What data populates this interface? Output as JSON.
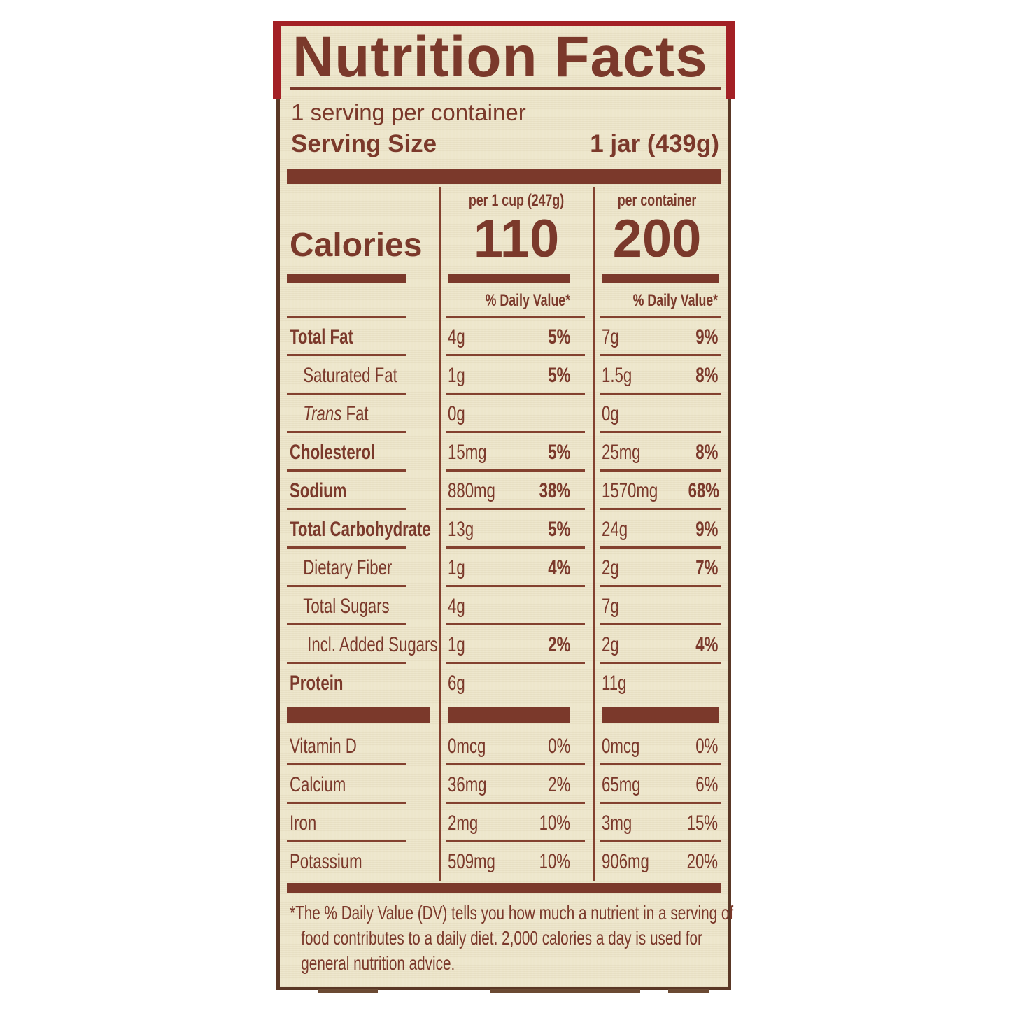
{
  "colors": {
    "text_brown": "#7B392B",
    "rule_brown": "#83412F",
    "panel_cream": "#EDE6CB",
    "trim_red": "#A32025",
    "border_brown": "#5A3826"
  },
  "header": {
    "title": "Nutrition Facts",
    "servings_per_container": "1 serving per container",
    "serving_size_label": "Serving Size",
    "serving_size_value": "1 jar (439g)"
  },
  "calories": {
    "label": "Calories",
    "columns": [
      {
        "header": "per 1 cup (247g)",
        "value": "110"
      },
      {
        "header": "per container",
        "value": "200"
      }
    ]
  },
  "daily_value_header": "% Daily Value*",
  "nutrients": [
    {
      "label": "Total Fat",
      "bold": true,
      "indent": 0,
      "per_cup": {
        "amount": "4g",
        "dv": "5%"
      },
      "per_container": {
        "amount": "7g",
        "dv": "9%"
      }
    },
    {
      "label": "Saturated Fat",
      "bold": false,
      "indent": 1,
      "per_cup": {
        "amount": "1g",
        "dv": "5%"
      },
      "per_container": {
        "amount": "1.5g",
        "dv": "8%"
      }
    },
    {
      "label": "Trans Fat",
      "bold": false,
      "indent": 1,
      "italic_first": true,
      "per_cup": {
        "amount": "0g",
        "dv": ""
      },
      "per_container": {
        "amount": "0g",
        "dv": ""
      }
    },
    {
      "label": "Cholesterol",
      "bold": true,
      "indent": 0,
      "per_cup": {
        "amount": "15mg",
        "dv": "5%"
      },
      "per_container": {
        "amount": "25mg",
        "dv": "8%"
      }
    },
    {
      "label": "Sodium",
      "bold": true,
      "indent": 0,
      "per_cup": {
        "amount": "880mg",
        "dv": "38%"
      },
      "per_container": {
        "amount": "1570mg",
        "dv": "68%"
      }
    },
    {
      "label": "Total Carbohydrate",
      "bold": true,
      "indent": 0,
      "per_cup": {
        "amount": "13g",
        "dv": "5%"
      },
      "per_container": {
        "amount": "24g",
        "dv": "9%"
      }
    },
    {
      "label": "Dietary Fiber",
      "bold": false,
      "indent": 1,
      "per_cup": {
        "amount": "1g",
        "dv": "4%"
      },
      "per_container": {
        "amount": "2g",
        "dv": "7%"
      }
    },
    {
      "label": "Total Sugars",
      "bold": false,
      "indent": 1,
      "per_cup": {
        "amount": "4g",
        "dv": ""
      },
      "per_container": {
        "amount": "7g",
        "dv": ""
      }
    },
    {
      "label": "Incl. Added Sugars",
      "bold": false,
      "indent": 2,
      "per_cup": {
        "amount": "1g",
        "dv": "2%"
      },
      "per_container": {
        "amount": "2g",
        "dv": "4%"
      }
    },
    {
      "label": "Protein",
      "bold": true,
      "indent": 0,
      "per_cup": {
        "amount": "6g",
        "dv": ""
      },
      "per_container": {
        "amount": "11g",
        "dv": ""
      }
    }
  ],
  "minerals": [
    {
      "label": "Vitamin D",
      "bold": false,
      "indent": 0,
      "per_cup": {
        "amount": "0mcg",
        "dv": "0%"
      },
      "per_container": {
        "amount": "0mcg",
        "dv": "0%"
      }
    },
    {
      "label": "Calcium",
      "bold": false,
      "indent": 0,
      "per_cup": {
        "amount": "36mg",
        "dv": "2%"
      },
      "per_container": {
        "amount": "65mg",
        "dv": "6%"
      }
    },
    {
      "label": "Iron",
      "bold": false,
      "indent": 0,
      "per_cup": {
        "amount": "2mg",
        "dv": "10%"
      },
      "per_container": {
        "amount": "3mg",
        "dv": "15%"
      }
    },
    {
      "label": "Potassium",
      "bold": false,
      "indent": 0,
      "per_cup": {
        "amount": "509mg",
        "dv": "10%"
      },
      "per_container": {
        "amount": "906mg",
        "dv": "20%"
      }
    }
  ],
  "footnote": "*The % Daily Value (DV) tells you how much a nutrient in a serving of food contributes to a daily diet. 2,000 calories a day is used for general nutrition advice."
}
